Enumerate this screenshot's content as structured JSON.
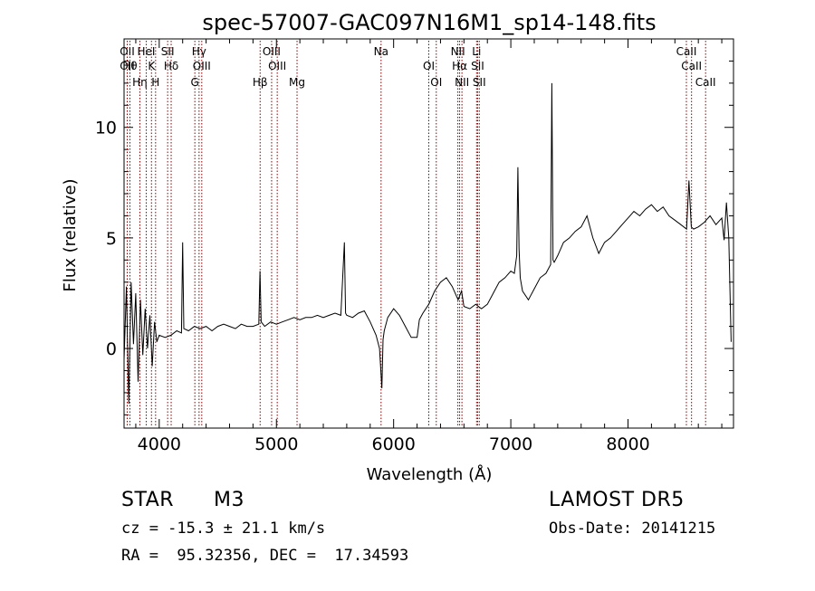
{
  "chart_data": {
    "type": "line",
    "title": "spec-57007-GAC097N16M1_sp14-148.fits",
    "xlabel": "Wavelength (Å)",
    "ylabel": "Flux (relative)",
    "xlim": [
      3700,
      8900
    ],
    "ylim": [
      -3.6,
      14.0
    ],
    "x_ticks": [
      4000,
      5000,
      6000,
      7000,
      8000
    ],
    "x_tick_labels": [
      "4000",
      "5000",
      "6000",
      "7000",
      "8000"
    ],
    "y_ticks": [
      0,
      5,
      10
    ],
    "y_tick_labels": [
      "0",
      "5",
      "10"
    ],
    "grid": false,
    "legend": "none",
    "line_color": "#000000",
    "marker_color": "#8b0000",
    "series": [
      {
        "x": [
          3700,
          3720,
          3740,
          3760,
          3780,
          3800,
          3820,
          3840,
          3860,
          3880,
          3900,
          3920,
          3940,
          3960,
          3980,
          4000,
          4050,
          4100,
          4150,
          4190,
          4200,
          4210,
          4250,
          4300,
          4350,
          4400,
          4450,
          4500,
          4550,
          4600,
          4650,
          4700,
          4750,
          4800,
          4850,
          4860,
          4870,
          4900,
          4950,
          5000,
          5050,
          5100,
          5150,
          5200,
          5250,
          5300,
          5350,
          5400,
          5450,
          5500,
          5550,
          5580,
          5590,
          5600,
          5650,
          5700,
          5750,
          5800,
          5850,
          5880,
          5900,
          5910,
          5920,
          5950,
          6000,
          6050,
          6100,
          6150,
          6200,
          6220,
          6250,
          6300,
          6350,
          6400,
          6450,
          6500,
          6550,
          6580,
          6600,
          6650,
          6700,
          6750,
          6800,
          6850,
          6900,
          6950,
          7000,
          7030,
          7050,
          7060,
          7070,
          7080,
          7100,
          7150,
          7200,
          7250,
          7300,
          7340,
          7350,
          7360,
          7370,
          7400,
          7450,
          7500,
          7550,
          7600,
          7650,
          7700,
          7750,
          7800,
          7850,
          7900,
          7950,
          8000,
          8050,
          8100,
          8150,
          8200,
          8250,
          8300,
          8350,
          8400,
          8450,
          8500,
          8520,
          8540,
          8560,
          8600,
          8650,
          8700,
          8750,
          8800,
          8820,
          8840,
          8860,
          8880
        ],
        "y": [
          -0.5,
          2.8,
          -2.5,
          3.0,
          0.2,
          2.5,
          -1.5,
          2.2,
          -0.3,
          1.8,
          0.0,
          1.5,
          -0.8,
          1.2,
          0.3,
          0.6,
          0.5,
          0.6,
          0.8,
          0.7,
          4.8,
          0.9,
          0.8,
          1.0,
          0.9,
          1.0,
          0.8,
          1.0,
          1.1,
          1.0,
          0.9,
          1.1,
          1.0,
          1.0,
          1.1,
          3.5,
          1.2,
          1.0,
          1.2,
          1.1,
          1.2,
          1.3,
          1.4,
          1.3,
          1.4,
          1.4,
          1.5,
          1.4,
          1.5,
          1.6,
          1.5,
          4.8,
          1.6,
          1.5,
          1.4,
          1.6,
          1.7,
          1.2,
          0.6,
          0.0,
          -1.8,
          0.4,
          0.8,
          1.4,
          1.8,
          1.5,
          1.0,
          0.5,
          0.5,
          1.3,
          1.6,
          2.0,
          2.6,
          3.0,
          3.2,
          2.8,
          2.2,
          2.6,
          1.9,
          1.8,
          2.0,
          1.8,
          2.0,
          2.5,
          3.0,
          3.2,
          3.5,
          3.4,
          4.2,
          8.2,
          4.5,
          3.2,
          2.6,
          2.2,
          2.7,
          3.2,
          3.4,
          3.8,
          12.0,
          4.0,
          3.9,
          4.2,
          4.8,
          5.0,
          5.3,
          5.5,
          6.0,
          5.0,
          4.3,
          4.8,
          5.0,
          5.3,
          5.6,
          5.9,
          6.2,
          6.0,
          6.3,
          6.5,
          6.2,
          6.4,
          6.0,
          5.8,
          5.6,
          5.4,
          7.6,
          5.5,
          5.4,
          5.5,
          5.7,
          6.0,
          5.6,
          5.9,
          4.9,
          6.6,
          5.0,
          0.3
        ]
      }
    ],
    "line_ids": [
      {
        "wl": 3727,
        "labels": [
          "OII",
          "OII"
        ]
      },
      {
        "wl": 3750,
        "labels": [
          "Hθ"
        ]
      },
      {
        "wl": 3835,
        "labels": [
          "Hη"
        ]
      },
      {
        "wl": 3889,
        "labels": [
          "HeI"
        ]
      },
      {
        "wl": 3934,
        "labels": [
          "K"
        ]
      },
      {
        "wl": 3969,
        "labels": [
          "H"
        ]
      },
      {
        "wl": 4072,
        "labels": [
          "SII"
        ]
      },
      {
        "wl": 4102,
        "labels": [
          "Hδ"
        ]
      },
      {
        "wl": 4304,
        "labels": [
          "G"
        ]
      },
      {
        "wl": 4340,
        "labels": [
          "Hγ"
        ]
      },
      {
        "wl": 4363,
        "labels": [
          "OIII"
        ]
      },
      {
        "wl": 4861,
        "labels": [
          "Hβ"
        ]
      },
      {
        "wl": 4959,
        "labels": [
          "OIII"
        ]
      },
      {
        "wl": 5007,
        "labels": [
          "OIII"
        ]
      },
      {
        "wl": 5176,
        "labels": [
          "Mg"
        ]
      },
      {
        "wl": 5893,
        "labels": [
          "Na"
        ]
      },
      {
        "wl": 6300,
        "labels": [
          "OI"
        ]
      },
      {
        "wl": 6364,
        "labels": [
          "OI"
        ]
      },
      {
        "wl": 6548,
        "labels": [
          "NII"
        ]
      },
      {
        "wl": 6563,
        "labels": [
          "Hα"
        ]
      },
      {
        "wl": 6583,
        "labels": [
          "NII"
        ]
      },
      {
        "wl": 6708,
        "labels": [
          "Li"
        ]
      },
      {
        "wl": 6717,
        "labels": [
          "SII"
        ]
      },
      {
        "wl": 6731,
        "labels": [
          "SII"
        ]
      },
      {
        "wl": 8498,
        "labels": [
          "CaII"
        ]
      },
      {
        "wl": 8542,
        "labels": [
          "CaII"
        ]
      },
      {
        "wl": 8662,
        "labels": [
          "CaII"
        ]
      }
    ]
  },
  "info": {
    "object_type": "STAR",
    "subclass": "M3",
    "survey": "LAMOST DR5",
    "cz": "cz = -15.3 ± 21.1 km/s",
    "obs_date": "Obs-Date: 20141215",
    "coords": "RA =  95.32356, DEC =  17.34593"
  }
}
